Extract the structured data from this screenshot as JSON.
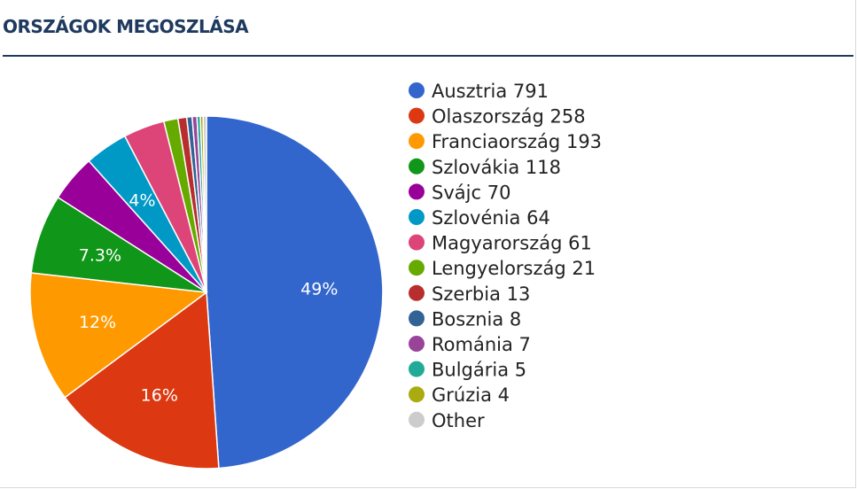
{
  "header": {
    "title": "ORSZÁGOK MEGOSZLÁSA"
  },
  "chart_data": {
    "type": "pie",
    "title": "ORSZÁGOK MEGOSZLÁSA",
    "legend_position": "right",
    "slices": [
      {
        "label": "Ausztria",
        "value": 791,
        "color": "#3366cc",
        "percent_label": "49%"
      },
      {
        "label": "Olaszország",
        "value": 258,
        "color": "#dc3912",
        "percent_label": "16%"
      },
      {
        "label": "Franciaország",
        "value": 193,
        "color": "#ff9900",
        "percent_label": "12%"
      },
      {
        "label": "Szlovákia",
        "value": 118,
        "color": "#109618",
        "percent_label": "7.3%"
      },
      {
        "label": "Svájc",
        "value": 70,
        "color": "#990099",
        "percent_label": ""
      },
      {
        "label": "Szlovénia",
        "value": 64,
        "color": "#0099c6",
        "percent_label": "4%"
      },
      {
        "label": "Magyarország",
        "value": 61,
        "color": "#dd4477",
        "percent_label": ""
      },
      {
        "label": "Lengyelország",
        "value": 21,
        "color": "#66aa00",
        "percent_label": ""
      },
      {
        "label": "Szerbia",
        "value": 13,
        "color": "#b82e2e",
        "percent_label": ""
      },
      {
        "label": "Bosznia",
        "value": 8,
        "color": "#316395",
        "percent_label": ""
      },
      {
        "label": "Románia",
        "value": 7,
        "color": "#994499",
        "percent_label": ""
      },
      {
        "label": "Bulgária",
        "value": 5,
        "color": "#22aa99",
        "percent_label": ""
      },
      {
        "label": "Grúzia",
        "value": 4,
        "color": "#aaaa11",
        "percent_label": ""
      },
      {
        "label": "Other",
        "value": 5,
        "color": "#cccccc",
        "percent_label": "",
        "hide_value": true
      }
    ]
  }
}
